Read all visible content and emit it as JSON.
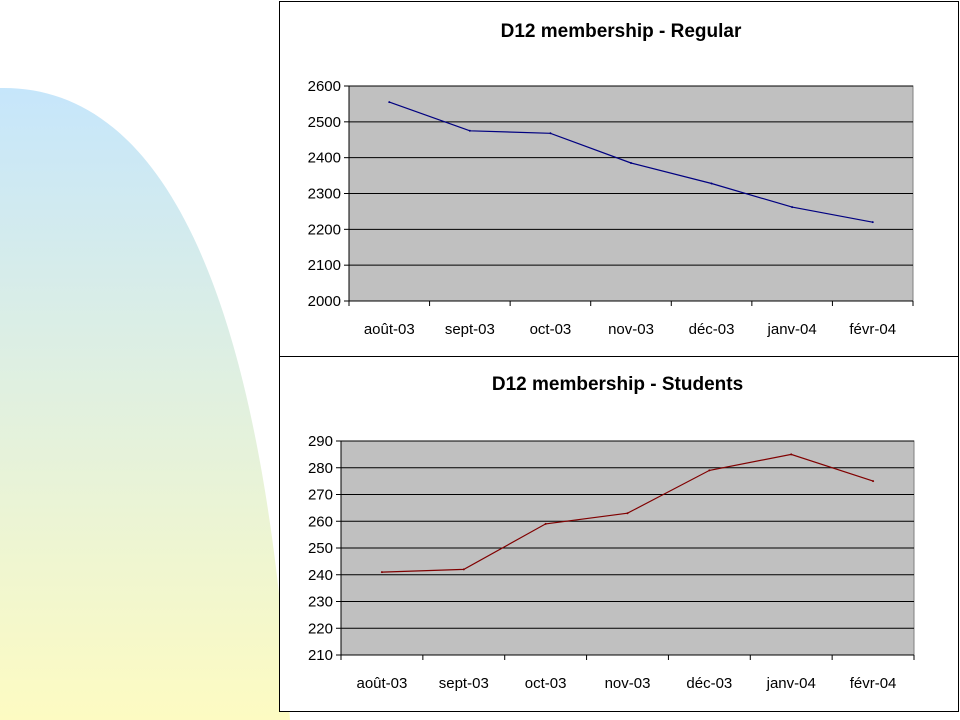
{
  "colors": {
    "plot_area": "#c0c0c0",
    "gridline": "#000000",
    "regular_line": "#000080",
    "students_line": "#800000",
    "bg_gradient_top": "#c6e6fb",
    "bg_gradient_bottom": "#fdfbc2"
  },
  "chart_data": [
    {
      "type": "line",
      "title": "D12 membership - Regular",
      "categories": [
        "août-03",
        "sept-03",
        "oct-03",
        "nov-03",
        "déc-03",
        "janv-04",
        "févr-04"
      ],
      "series": [
        {
          "values": [
            2555,
            2475,
            2468,
            2385,
            2328,
            2262,
            2220
          ]
        }
      ],
      "ylim": [
        2000,
        2600
      ],
      "yticks": [
        "2000",
        "2100",
        "2200",
        "2300",
        "2400",
        "2500",
        "2600"
      ],
      "ytick_values": [
        2000,
        2100,
        2200,
        2300,
        2400,
        2500,
        2600
      ],
      "grid": true,
      "legend": "none"
    },
    {
      "type": "line",
      "title": "D12 membership - Students",
      "categories": [
        "août-03",
        "sept-03",
        "oct-03",
        "nov-03",
        "déc-03",
        "janv-04",
        "févr-04"
      ],
      "series": [
        {
          "values": [
            241,
            242,
            259,
            263,
            279,
            285,
            275
          ]
        }
      ],
      "ylim": [
        210,
        290
      ],
      "yticks": [
        "210",
        "220",
        "230",
        "240",
        "250",
        "260",
        "270",
        "280",
        "290"
      ],
      "ytick_values": [
        210,
        220,
        230,
        240,
        250,
        260,
        270,
        280,
        290
      ],
      "grid": true,
      "legend": "none"
    }
  ]
}
